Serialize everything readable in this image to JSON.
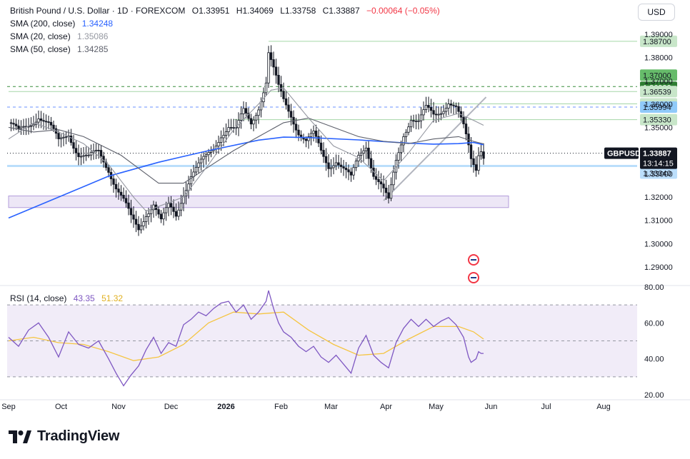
{
  "header": {
    "symbol_line": "British Pound / U.S. Dollar · 1D · FOREXCOM",
    "open": "O1.33951",
    "high": "H1.34069",
    "low": "L1.33758",
    "close": "C1.33887",
    "change": "−0.00064 (−0.05%)",
    "change_color": "#f23645"
  },
  "indicators": [
    {
      "label": "SMA (200, close)",
      "value": "1.34248",
      "color": "#2962ff"
    },
    {
      "label": "SMA (20, close)",
      "value": "1.35086",
      "color": "#9598a1"
    },
    {
      "label": "SMA (50, close)",
      "value": "1.34285",
      "color": "#5d606b"
    }
  ],
  "currency_button": "USD",
  "rsi_header": {
    "label": "RSI (14, close)",
    "value": "43.35",
    "ma_value": "51.32",
    "value_color": "#7e57c2",
    "ma_color": "#f5c542"
  },
  "logo_text": "TradingView",
  "chart_data": {
    "type": "candlestick",
    "symbol": "GBPUSD",
    "timeframe": "1D",
    "price_axis": {
      "range": [
        1.2835,
        1.3925
      ],
      "ticks": [
        "1.39000",
        "1.38000",
        "1.37000",
        "1.36000",
        "1.35000",
        "1.34000",
        "1.33000",
        "1.32000",
        "1.31000",
        "1.30000",
        "1.29000"
      ],
      "tick_values": [
        1.39,
        1.38,
        1.37,
        1.36,
        1.35,
        1.34,
        1.33,
        1.32,
        1.31,
        1.3,
        1.29
      ]
    },
    "time_axis": {
      "labels": [
        "Sep",
        "Oct",
        "Nov",
        "Dec",
        "2026",
        "Feb",
        "Mar",
        "Apr",
        "May",
        "Jun",
        "Jul",
        "Aug"
      ],
      "label_days": [
        0,
        21,
        44,
        65,
        87,
        109,
        129,
        151,
        171,
        193,
        215,
        238
      ],
      "bold": [
        "2026"
      ]
    },
    "close_path": {
      "days": [
        0,
        4,
        8,
        12,
        16,
        20,
        24,
        28,
        32,
        36,
        40,
        43,
        46,
        49,
        52,
        55,
        58,
        61,
        64,
        67,
        70,
        73,
        76,
        79,
        82,
        85,
        88,
        91,
        94,
        97,
        100,
        103,
        104,
        106,
        108,
        110,
        113,
        116,
        119,
        122,
        125,
        128,
        131,
        134,
        137,
        140,
        143,
        146,
        149,
        152,
        155,
        158,
        161,
        164,
        167,
        170,
        173,
        176,
        179,
        182,
        184,
        185,
        187,
        188,
        189,
        190
      ],
      "closes": [
        1.352,
        1.347,
        1.351,
        1.356,
        1.351,
        1.343,
        1.348,
        1.339,
        1.336,
        1.339,
        1.333,
        1.325,
        1.318,
        1.31,
        1.306,
        1.314,
        1.318,
        1.309,
        1.315,
        1.312,
        1.323,
        1.33,
        1.333,
        1.336,
        1.341,
        1.348,
        1.351,
        1.348,
        1.356,
        1.352,
        1.36,
        1.37,
        1.382,
        1.374,
        1.366,
        1.361,
        1.356,
        1.349,
        1.344,
        1.346,
        1.339,
        1.334,
        1.337,
        1.332,
        1.327,
        1.337,
        1.343,
        1.331,
        1.325,
        1.317,
        1.335,
        1.348,
        1.355,
        1.352,
        1.357,
        1.355,
        1.358,
        1.362,
        1.358,
        1.349,
        1.341,
        1.336,
        1.333,
        1.34,
        1.342,
        1.339
      ]
    },
    "sma": [
      {
        "name": "SMA 200",
        "color": "#2962ff",
        "days": [
          0,
          20,
          40,
          60,
          80,
          100,
          110,
          120,
          140,
          160,
          170,
          180,
          186,
          190
        ],
        "values": [
          1.311,
          1.32,
          1.329,
          1.335,
          1.34,
          1.3445,
          1.3458,
          1.3456,
          1.3446,
          1.3432,
          1.3428,
          1.343,
          1.3435,
          1.3425
        ]
      },
      {
        "name": "SMA 50",
        "color": "#5d606b",
        "days": [
          0,
          10,
          20,
          30,
          45,
          55,
          60,
          70,
          80,
          90,
          100,
          110,
          120,
          130,
          140,
          150,
          160,
          170,
          180,
          186,
          190
        ],
        "values": [
          1.35,
          1.348,
          1.349,
          1.346,
          1.338,
          1.33,
          1.326,
          1.326,
          1.333,
          1.34,
          1.346,
          1.352,
          1.354,
          1.35,
          1.346,
          1.344,
          1.343,
          1.345,
          1.346,
          1.344,
          1.3429
        ]
      },
      {
        "name": "SMA 20",
        "color": "#9598a1",
        "days": [
          0,
          10,
          20,
          30,
          40,
          50,
          55,
          60,
          70,
          80,
          90,
          100,
          105,
          110,
          120,
          130,
          140,
          150,
          160,
          170,
          180,
          186,
          190
        ],
        "values": [
          1.345,
          1.352,
          1.348,
          1.343,
          1.334,
          1.32,
          1.314,
          1.316,
          1.32,
          1.334,
          1.349,
          1.36,
          1.366,
          1.367,
          1.354,
          1.342,
          1.337,
          1.327,
          1.339,
          1.353,
          1.356,
          1.353,
          1.3509
        ]
      }
    ],
    "horizontal_levels": [
      {
        "price": 1.387,
        "label": "1.38700",
        "style": "green-line",
        "from_day": 104
      },
      {
        "price": 1.37,
        "label": "1.37000",
        "style": "green-badge"
      },
      {
        "price": 1.36999,
        "label": "1.36999",
        "style": "dark-green-badge"
      },
      {
        "price": 1.3654,
        "label": "1.36539",
        "style": "green-line",
        "from_day": 0
      },
      {
        "price": 1.3601,
        "label": "1.36006",
        "style": "green-line",
        "from_day": 168
      },
      {
        "price": 1.35994,
        "label": "1.35994",
        "style": "blue-dashed"
      },
      {
        "price": 1.3533,
        "label": "1.35330",
        "style": "green-line",
        "from_day": 90
      },
      {
        "price": 1.33887,
        "label": "1.33887",
        "style": "last-price"
      },
      {
        "price": 1.3334,
        "label": "1.33340",
        "style": "blue-line"
      }
    ],
    "last_price": {
      "symbol": "GBPUSD",
      "value": "1.33887",
      "countdown": "13:14:15"
    },
    "support_zone": {
      "from_day": 0,
      "to_day": 200,
      "low": 1.3155,
      "high": 1.3205
    },
    "trendline": {
      "from_day": 150,
      "from_price": 1.3185,
      "to_day": 191,
      "to_price": 1.363
    },
    "rsi": {
      "range": [
        20,
        80
      ],
      "ticks": [
        "80.00",
        "60.00",
        "40.00",
        "20.00"
      ],
      "tick_values": [
        80,
        60,
        40,
        20
      ],
      "overbought": 70,
      "oversold": 30,
      "mid": 50,
      "days": [
        0,
        4,
        8,
        12,
        16,
        20,
        24,
        28,
        32,
        36,
        40,
        43,
        46,
        49,
        52,
        55,
        58,
        61,
        64,
        67,
        70,
        73,
        76,
        79,
        82,
        85,
        88,
        91,
        94,
        97,
        100,
        103,
        104,
        106,
        108,
        110,
        113,
        116,
        119,
        122,
        125,
        128,
        131,
        134,
        137,
        140,
        143,
        146,
        149,
        152,
        155,
        158,
        161,
        164,
        167,
        170,
        173,
        176,
        179,
        182,
        184,
        185,
        187,
        188,
        189,
        190
      ],
      "values": [
        52,
        47,
        56,
        60,
        52,
        41,
        55,
        48,
        46,
        50,
        40,
        32,
        25,
        31,
        36,
        45,
        52,
        43,
        49,
        47,
        59,
        62,
        66,
        64,
        68,
        71,
        72,
        66,
        70,
        62,
        66,
        72,
        78,
        68,
        60,
        55,
        52,
        47,
        44,
        47,
        41,
        38,
        42,
        37,
        32,
        46,
        53,
        42,
        38,
        35,
        49,
        57,
        62,
        58,
        62,
        58,
        61,
        63,
        59,
        52,
        41,
        38,
        40,
        44,
        43,
        43
      ],
      "ma_days": [
        0,
        10,
        20,
        30,
        40,
        50,
        60,
        70,
        80,
        90,
        100,
        110,
        120,
        130,
        140,
        150,
        160,
        170,
        180,
        186,
        190
      ],
      "ma_values": [
        50,
        52,
        49,
        48,
        44,
        39,
        41,
        48,
        60,
        66,
        65,
        66,
        56,
        48,
        42,
        43,
        51,
        58,
        58,
        55,
        51
      ]
    }
  }
}
